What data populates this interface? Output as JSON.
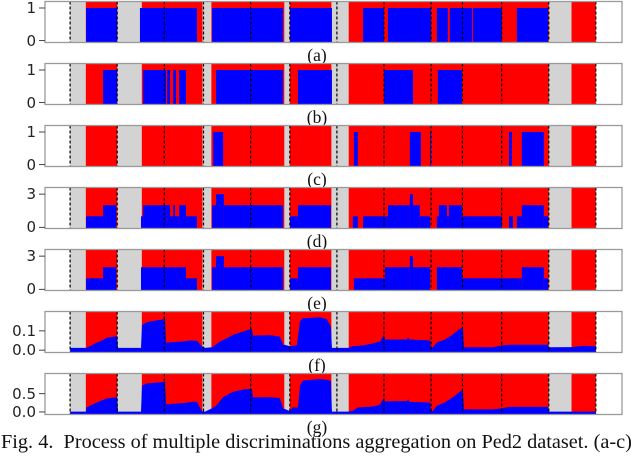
{
  "chart_data": {
    "type": "area",
    "title": "",
    "caption": "Fig. 4.  Process of multiple discriminations aggregation on Ped2 dataset. (a-c)",
    "xlabel": "",
    "ylabel": "",
    "xlim": [
      -96,
      2110
    ],
    "grid": false,
    "legend": null,
    "colors": {
      "score": "#0000ff",
      "abnormal": "#ff0000",
      "normal": "#d3d3d3",
      "boundary": "#000000",
      "frame": "#9a9a9a"
    },
    "video_boundaries": [
      0,
      180,
      360,
      510,
      690,
      840,
      1020,
      1200,
      1380,
      1500,
      1650,
      1830,
      2010
    ],
    "normal_spans": [
      [
        0,
        60
      ],
      [
        180,
        274
      ],
      [
        506,
        540
      ],
      [
        819,
        840
      ],
      [
        999,
        1065
      ],
      [
        1830,
        1917
      ]
    ],
    "abnormal_spans": [
      [
        60,
        180
      ],
      [
        274,
        506
      ],
      [
        540,
        819
      ],
      [
        840,
        999
      ],
      [
        1065,
        1830
      ],
      [
        1917,
        2010
      ]
    ],
    "panels": [
      {
        "label": "(a)",
        "type": "step",
        "ylim": [
          -0.06,
          1.2
        ],
        "yticks": [
          {
            "value": 0,
            "label": "0"
          },
          {
            "value": 1,
            "label": "1"
          }
        ],
        "segments": [
          [
            61,
            180,
            1
          ],
          [
            267,
            485,
            1
          ],
          [
            543,
            814,
            1
          ],
          [
            841,
            1001,
            1
          ],
          [
            1120,
            1200,
            1
          ],
          [
            1215,
            1380,
            1
          ],
          [
            1402,
            1444,
            1
          ],
          [
            1452,
            1536,
            1
          ],
          [
            1540,
            1651,
            1
          ],
          [
            1708,
            1827,
            1
          ]
        ]
      },
      {
        "label": "(b)",
        "type": "step",
        "ylim": [
          -0.06,
          1.2
        ],
        "yticks": [
          {
            "value": 0,
            "label": "0"
          },
          {
            "value": 1,
            "label": "1"
          }
        ],
        "segments": [
          [
            126,
            180,
            1
          ],
          [
            279,
            367,
            1
          ],
          [
            371,
            382,
            1
          ],
          [
            394,
            405,
            1
          ],
          [
            417,
            443,
            1
          ],
          [
            558,
            814,
            1
          ],
          [
            871,
            1001,
            1
          ],
          [
            1200,
            1311,
            1
          ],
          [
            1406,
            1498,
            1
          ]
        ]
      },
      {
        "label": "(c)",
        "type": "step",
        "ylim": [
          -0.06,
          1.2
        ],
        "yticks": [
          {
            "value": 0,
            "label": "0"
          },
          {
            "value": 1,
            "label": "1"
          }
        ],
        "segments": [
          [
            547,
            585,
            1
          ],
          [
            1085,
            1100,
            1
          ],
          [
            1299,
            1341,
            1
          ],
          [
            1376,
            1380,
            1
          ],
          [
            1678,
            1689,
            1
          ],
          [
            1727,
            1811,
            1
          ]
        ]
      },
      {
        "label": "(d)",
        "type": "step",
        "ylim": [
          -0.1,
          3.6
        ],
        "yticks": [
          {
            "value": 0,
            "label": "0"
          },
          {
            "value": 3,
            "label": "3"
          }
        ],
        "segments": [
          [
            61,
            126,
            1
          ],
          [
            126,
            176,
            2
          ],
          [
            271,
            279,
            1
          ],
          [
            279,
            367,
            2
          ],
          [
            367,
            382,
            2
          ],
          [
            382,
            394,
            1
          ],
          [
            394,
            401,
            2
          ],
          [
            401,
            417,
            1
          ],
          [
            417,
            443,
            2
          ],
          [
            443,
            485,
            1
          ],
          [
            543,
            558,
            2
          ],
          [
            558,
            588,
            3
          ],
          [
            588,
            814,
            2
          ],
          [
            841,
            871,
            1
          ],
          [
            871,
            997,
            2
          ],
          [
            1081,
            1100,
            1
          ],
          [
            1120,
            1215,
            1
          ],
          [
            1215,
            1299,
            2
          ],
          [
            1299,
            1311,
            3
          ],
          [
            1311,
            1337,
            2
          ],
          [
            1337,
            1376,
            1
          ],
          [
            1402,
            1410,
            1
          ],
          [
            1410,
            1441,
            2
          ],
          [
            1441,
            1448,
            1
          ],
          [
            1448,
            1498,
            2
          ],
          [
            1498,
            1651,
            1
          ],
          [
            1678,
            1693,
            1
          ],
          [
            1708,
            1727,
            1
          ],
          [
            1727,
            1811,
            2
          ],
          [
            1811,
            1827,
            1
          ]
        ]
      },
      {
        "label": "(e)",
        "type": "step",
        "ylim": [
          -0.1,
          3.6
        ],
        "yticks": [
          {
            "value": 0,
            "label": "0"
          },
          {
            "value": 3,
            "label": "3"
          }
        ],
        "segments": [
          [
            61,
            126,
            1
          ],
          [
            126,
            176,
            2
          ],
          [
            271,
            443,
            2
          ],
          [
            443,
            485,
            1
          ],
          [
            543,
            558,
            2
          ],
          [
            558,
            588,
            3
          ],
          [
            588,
            814,
            2
          ],
          [
            841,
            871,
            1
          ],
          [
            871,
            997,
            2
          ],
          [
            1085,
            1204,
            1
          ],
          [
            1204,
            1299,
            2
          ],
          [
            1299,
            1311,
            3
          ],
          [
            1311,
            1376,
            2
          ],
          [
            1402,
            1498,
            2
          ],
          [
            1498,
            1727,
            1
          ],
          [
            1727,
            1811,
            2
          ],
          [
            1811,
            1827,
            1
          ]
        ]
      },
      {
        "label": "(f)",
        "type": "line",
        "ylim": [
          -0.012,
          0.2
        ],
        "yticks": [
          {
            "value": 0.0,
            "label": "0.0"
          },
          {
            "value": 0.1,
            "label": "0.1"
          }
        ],
        "points": [
          [
            0,
            0.012
          ],
          [
            61,
            0.012
          ],
          [
            76,
            0.02
          ],
          [
            103,
            0.04
          ],
          [
            122,
            0.05
          ],
          [
            141,
            0.065
          ],
          [
            180,
            0.072
          ],
          [
            183,
            0.012
          ],
          [
            271,
            0.012
          ],
          [
            275,
            0.13
          ],
          [
            294,
            0.145
          ],
          [
            332,
            0.155
          ],
          [
            363,
            0.16
          ],
          [
            367,
            0.04
          ],
          [
            432,
            0.045
          ],
          [
            459,
            0.05
          ],
          [
            485,
            0.048
          ],
          [
            504,
            0.02
          ],
          [
            516,
            0.012
          ],
          [
            543,
            0.015
          ],
          [
            558,
            0.03
          ],
          [
            573,
            0.045
          ],
          [
            604,
            0.065
          ],
          [
            623,
            0.08
          ],
          [
            669,
            0.1
          ],
          [
            695,
            0.11
          ],
          [
            699,
            0.075
          ],
          [
            764,
            0.078
          ],
          [
            802,
            0.07
          ],
          [
            814,
            0.03
          ],
          [
            841,
            0.02
          ],
          [
            867,
            0.025
          ],
          [
            879,
            0.15
          ],
          [
            890,
            0.165
          ],
          [
            955,
            0.17
          ],
          [
            982,
            0.16
          ],
          [
            997,
            0.12
          ],
          [
            1001,
            0.012
          ],
          [
            1062,
            0.012
          ],
          [
            1081,
            0.02
          ],
          [
            1120,
            0.025
          ],
          [
            1158,
            0.035
          ],
          [
            1185,
            0.045
          ],
          [
            1196,
            0.07
          ],
          [
            1200,
            0.08
          ],
          [
            1204,
            0.055
          ],
          [
            1288,
            0.055
          ],
          [
            1292,
            0.065
          ],
          [
            1299,
            0.055
          ],
          [
            1376,
            0.05
          ],
          [
            1380,
            0.012
          ],
          [
            1387,
            0.015
          ],
          [
            1402,
            0.04
          ],
          [
            1433,
            0.055
          ],
          [
            1452,
            0.07
          ],
          [
            1471,
            0.09
          ],
          [
            1490,
            0.11
          ],
          [
            1502,
            0.12
          ],
          [
            1506,
            0.015
          ],
          [
            1616,
            0.015
          ],
          [
            1651,
            0.025
          ],
          [
            1681,
            0.028
          ],
          [
            1827,
            0.028
          ],
          [
            1830,
            0.015
          ],
          [
            1918,
            0.016
          ],
          [
            1960,
            0.022
          ],
          [
            2010,
            0.02
          ]
        ]
      },
      {
        "label": "(g)",
        "type": "line",
        "ylim": [
          -0.07,
          1.05
        ],
        "yticks": [
          {
            "value": 0.0,
            "label": "0.0"
          },
          {
            "value": 0.5,
            "label": "0.5"
          }
        ],
        "points": [
          [
            0,
            0.01
          ],
          [
            61,
            0.01
          ],
          [
            62,
            0.12
          ],
          [
            103,
            0.26
          ],
          [
            141,
            0.37
          ],
          [
            180,
            0.4
          ],
          [
            183,
            0.01
          ],
          [
            271,
            0.01
          ],
          [
            275,
            0.72
          ],
          [
            294,
            0.78
          ],
          [
            332,
            0.8
          ],
          [
            363,
            0.82
          ],
          [
            367,
            0.21
          ],
          [
            432,
            0.24
          ],
          [
            470,
            0.28
          ],
          [
            485,
            0.27
          ],
          [
            504,
            0.02
          ],
          [
            516,
            0.01
          ],
          [
            543,
            0.1
          ],
          [
            558,
            0.17
          ],
          [
            585,
            0.4
          ],
          [
            604,
            0.48
          ],
          [
            623,
            0.55
          ],
          [
            669,
            0.62
          ],
          [
            695,
            0.63
          ],
          [
            699,
            0.4
          ],
          [
            764,
            0.4
          ],
          [
            802,
            0.38
          ],
          [
            814,
            0.1
          ],
          [
            841,
            0.02
          ],
          [
            850,
            0.12
          ],
          [
            871,
            0.12
          ],
          [
            879,
            0.72
          ],
          [
            890,
            0.86
          ],
          [
            955,
            0.9
          ],
          [
            982,
            0.88
          ],
          [
            997,
            0.85
          ],
          [
            1001,
            0.01
          ],
          [
            1062,
            0.01
          ],
          [
            1081,
            0.03
          ],
          [
            1100,
            0.12
          ],
          [
            1158,
            0.15
          ],
          [
            1185,
            0.2
          ],
          [
            1196,
            0.35
          ],
          [
            1200,
            0.37
          ],
          [
            1204,
            0.29
          ],
          [
            1288,
            0.3
          ],
          [
            1292,
            0.35
          ],
          [
            1299,
            0.27
          ],
          [
            1376,
            0.26
          ],
          [
            1380,
            0.01
          ],
          [
            1387,
            0.03
          ],
          [
            1402,
            0.17
          ],
          [
            1433,
            0.26
          ],
          [
            1452,
            0.35
          ],
          [
            1471,
            0.44
          ],
          [
            1490,
            0.55
          ],
          [
            1502,
            0.6
          ],
          [
            1506,
            0.07
          ],
          [
            1616,
            0.07
          ],
          [
            1651,
            0.1
          ],
          [
            1681,
            0.14
          ],
          [
            1827,
            0.14
          ],
          [
            1830,
            0.01
          ],
          [
            2010,
            0.01
          ]
        ]
      }
    ]
  }
}
